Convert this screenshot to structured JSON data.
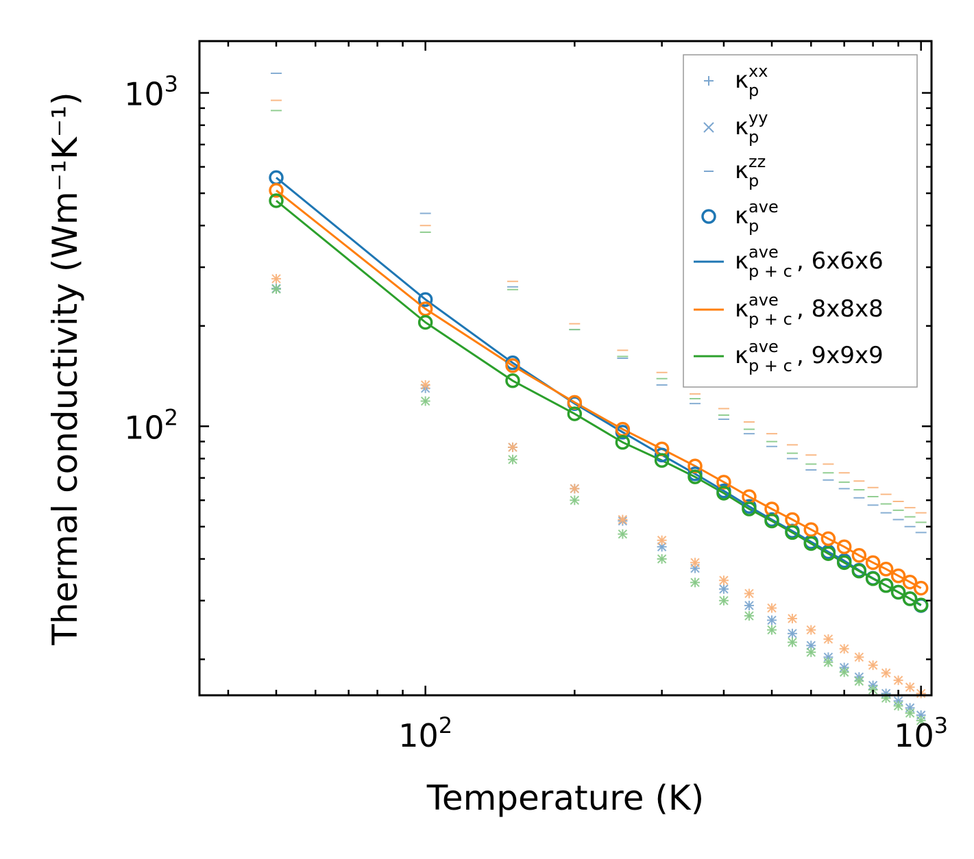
{
  "chart_data": {
    "type": "scatter",
    "title": "",
    "xlabel": "Temperature (K)",
    "ylabel": "Thermal conductivity (Wm⁻¹K⁻¹)",
    "xscale": "log",
    "yscale": "log",
    "xlim": [
      35,
      1050
    ],
    "ylim": [
      15.6,
      1430
    ],
    "x_ticks": [
      {
        "value": 100,
        "base": "10",
        "exp": "2"
      },
      {
        "value": 1000,
        "base": "10",
        "exp": "3"
      }
    ],
    "y_ticks": [
      {
        "value": 100,
        "base": "10",
        "exp": "2"
      },
      {
        "value": 1000,
        "base": "10",
        "exp": "3"
      }
    ],
    "legend_position": "top-right",
    "legend": [
      {
        "marker": "+",
        "color": "#7ba6cf",
        "main": "κ",
        "sub": "p",
        "sup": "xx",
        "suffix": ""
      },
      {
        "marker": "x",
        "color": "#7ba6cf",
        "main": "κ",
        "sub": "p",
        "sup": "yy",
        "suffix": ""
      },
      {
        "marker": "_",
        "color": "#7ba6cf",
        "main": "κ",
        "sub": "p",
        "sup": "zz",
        "suffix": ""
      },
      {
        "marker": "o",
        "color": "#1f77b4",
        "main": "κ",
        "sub": "p",
        "sup": "ave",
        "suffix": ""
      },
      {
        "marker": "line",
        "color": "#1f77b4",
        "main": "κ",
        "sub": "p + c",
        "sup": "ave",
        "suffix": ", 6x6x6"
      },
      {
        "marker": "line",
        "color": "#ff7f0e",
        "main": "κ",
        "sub": "p + c",
        "sup": "ave",
        "suffix": ", 8x8x8"
      },
      {
        "marker": "line",
        "color": "#2ca02c",
        "main": "κ",
        "sub": "p + c",
        "sup": "ave",
        "suffix": ", 9x9x9"
      }
    ],
    "x": [
      50,
      100,
      150,
      200,
      250,
      300,
      350,
      400,
      450,
      500,
      550,
      600,
      650,
      700,
      750,
      800,
      850,
      900,
      950,
      1000
    ],
    "series": [
      {
        "name": "6x6x6",
        "color": "#1f77b4",
        "kxx": [
          259,
          130,
          86.5,
          65,
          52,
          43.5,
          37.5,
          32.5,
          29,
          26.2,
          23.9,
          22,
          20.3,
          18.9,
          17.7,
          16.7,
          15.8,
          15,
          14.3,
          13.6
        ],
        "kyy": [
          259,
          130,
          86.5,
          65,
          52,
          43.5,
          37.5,
          32.5,
          29,
          26.2,
          23.9,
          22,
          20.3,
          18.9,
          17.7,
          16.7,
          15.8,
          15,
          14.3,
          13.6
        ],
        "kzz": [
          1145,
          435,
          262,
          195,
          160,
          133,
          117,
          105,
          95,
          87,
          80,
          74,
          69,
          65,
          61,
          58,
          55,
          52.5,
          50,
          48
        ],
        "ave": [
          557,
          240,
          155,
          117,
          96,
          82,
          72,
          64,
          57.5,
          52.5,
          48.5,
          45,
          42,
          39.5,
          37,
          35,
          33.3,
          31.8,
          30.4,
          29
        ]
      },
      {
        "name": "8x8x8",
        "color": "#ff7f0e",
        "kxx": [
          277,
          133,
          86.5,
          65,
          52.5,
          45.5,
          39,
          34.5,
          31.5,
          28.5,
          26.5,
          24.5,
          23,
          21.5,
          20.3,
          19.2,
          18.2,
          17.3,
          16.5,
          15.8
        ],
        "kyy": [
          277,
          133,
          86.5,
          65,
          52.5,
          45.5,
          39,
          34.5,
          31.5,
          28.5,
          26.5,
          24.5,
          23,
          21.5,
          20.3,
          19.2,
          18.2,
          17.3,
          16.5,
          15.8
        ],
        "kzz": [
          950,
          400,
          272,
          203,
          169,
          145,
          125,
          113,
          103,
          95,
          88,
          82,
          77,
          72.5,
          68.5,
          65.5,
          62.5,
          59.5,
          57,
          55
        ],
        "ave": [
          510,
          225,
          152,
          118,
          98,
          85.5,
          76,
          68,
          61.5,
          56.5,
          52.5,
          49,
          46,
          43.5,
          41,
          39,
          37.3,
          35.6,
          34.1,
          32.7
        ]
      },
      {
        "name": "9x9x9",
        "color": "#2ca02c",
        "kxx": [
          258,
          119,
          79.5,
          60,
          47.5,
          40,
          34,
          30,
          27,
          24.5,
          22.5,
          21,
          19.6,
          18.3,
          17.2,
          16.2,
          15.3,
          14.5,
          13.8,
          13.1
        ],
        "kyy": [
          258,
          119,
          79.5,
          60,
          47.5,
          40,
          34,
          30,
          27,
          24.5,
          22.5,
          21,
          19.6,
          18.3,
          17.2,
          16.2,
          15.3,
          14.5,
          13.8,
          13.1
        ],
        "kzz": [
          885,
          382,
          257,
          195,
          162,
          139,
          121,
          108,
          98,
          90,
          83,
          77,
          72.5,
          68,
          64.5,
          61.5,
          58.5,
          56,
          53.5,
          51.5
        ],
        "ave": [
          475,
          205,
          137,
          109,
          89.5,
          79,
          70.5,
          63,
          56.5,
          52,
          48,
          44.5,
          41.5,
          39,
          36.8,
          34.9,
          33.3,
          31.8,
          30.4,
          29.1
        ]
      }
    ]
  }
}
